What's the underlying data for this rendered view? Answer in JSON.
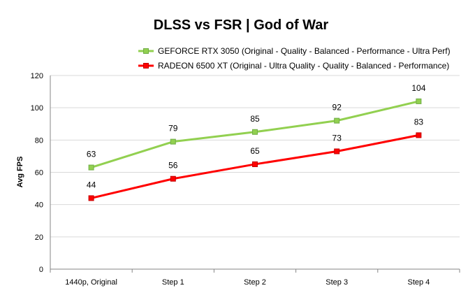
{
  "chart_data": {
    "type": "line",
    "title": "DLSS vs FSR | God of War",
    "xlabel": "",
    "ylabel": "Avg FPS",
    "categories": [
      "1440p, Original",
      "Step 1",
      "Step 2",
      "Step 3",
      "Step 4"
    ],
    "ylim": [
      0,
      120
    ],
    "yticks": [
      0,
      20,
      40,
      60,
      80,
      100,
      120
    ],
    "grid": true,
    "legend_position": "top-right",
    "series": [
      {
        "name": "GEFORCE RTX 3050 (Original - Quality - Balanced - Performance - Ultra Perf)",
        "values": [
          63,
          79,
          85,
          92,
          104
        ],
        "color": "#92d050",
        "marker_fill": "#92d050",
        "marker_stroke": "#70ad47"
      },
      {
        "name": "RADEON 6500 XT (Original - Ultra Quality - Quality - Balanced - Performance)",
        "values": [
          44,
          56,
          65,
          73,
          83
        ],
        "color": "#ff0000",
        "marker_fill": "#ff0000",
        "marker_stroke": "#c00000"
      }
    ]
  },
  "colors": {
    "grid": "#d9d9d9",
    "axis": "#868686",
    "background": "#ffffff"
  }
}
